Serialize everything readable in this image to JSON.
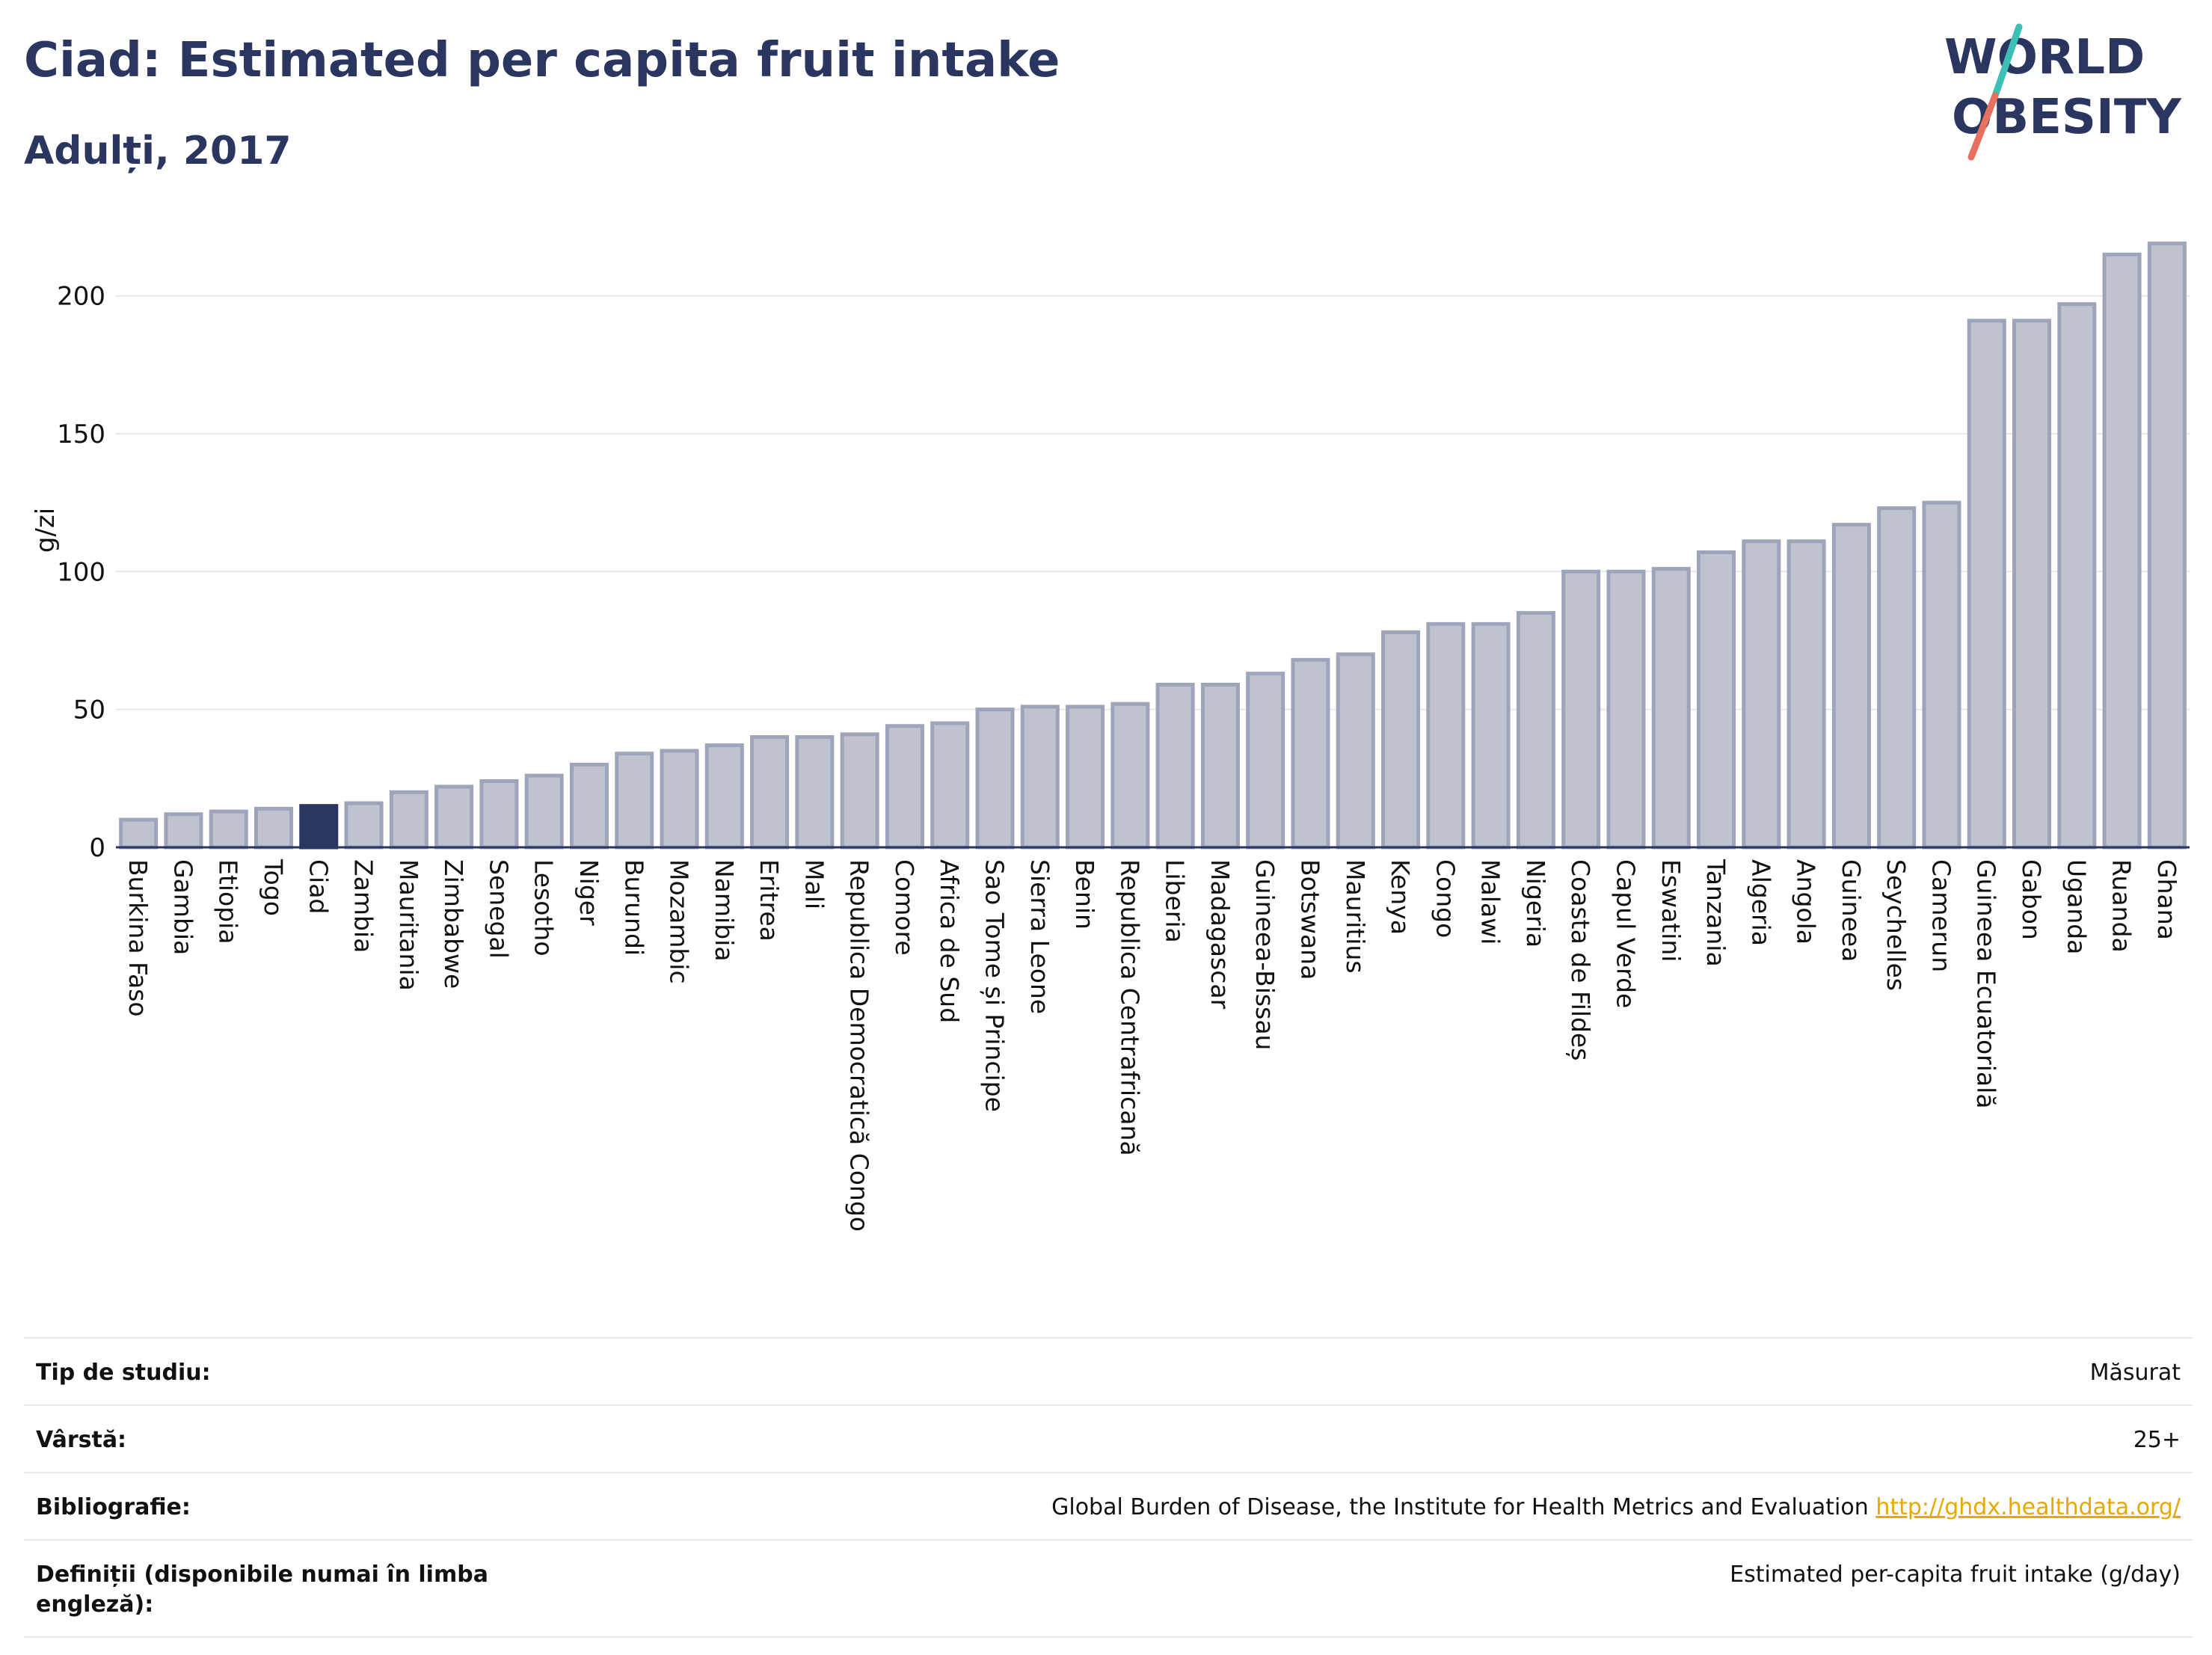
{
  "header": {
    "title": "Ciad: Estimated per capita fruit intake",
    "subtitle": "Adulți, 2017"
  },
  "logo": {
    "line1": "WORLD",
    "line2": "OBESITY"
  },
  "colors": {
    "bar": "#bfc3d0",
    "bar_edge": "#9ea4ba",
    "highlight": "#2a3560",
    "grid": "#e6e8ee"
  },
  "chart_data": {
    "type": "bar",
    "ylabel": "g/zi",
    "ylim": [
      0,
      230
    ],
    "yticks": [
      0,
      50,
      100,
      150,
      200
    ],
    "highlight": "Ciad",
    "categories": [
      "Burkina Faso",
      "Gambia",
      "Etiopia",
      "Togo",
      "Ciad",
      "Zambia",
      "Mauritania",
      "Zimbabwe",
      "Senegal",
      "Lesotho",
      "Niger",
      "Burundi",
      "Mozambic",
      "Namibia",
      "Eritrea",
      "Mali",
      "Republica Democratică Congo",
      "Comore",
      "Africa de Sud",
      "Sao Tome și Principe",
      "Sierra Leone",
      "Benin",
      "Republica Centrafricană",
      "Liberia",
      "Madagascar",
      "Guineea-Bissau",
      "Botswana",
      "Mauritius",
      "Kenya",
      "Congo",
      "Malawi",
      "Nigeria",
      "Coasta de Fildeș",
      "Capul Verde",
      "Eswatini",
      "Tanzania",
      "Algeria",
      "Angola",
      "Guineea",
      "Seychelles",
      "Camerun",
      "Guineea Ecuatorială",
      "Gabon",
      "Uganda",
      "Ruanda",
      "Ghana"
    ],
    "values": [
      10,
      12,
      13,
      14,
      15,
      16,
      20,
      22,
      24,
      26,
      30,
      34,
      35,
      37,
      40,
      40,
      41,
      44,
      45,
      50,
      51,
      51,
      52,
      59,
      59,
      63,
      68,
      70,
      78,
      81,
      81,
      85,
      100,
      100,
      101,
      107,
      111,
      111,
      117,
      123,
      125,
      191,
      191,
      197,
      215,
      219
    ]
  },
  "info": [
    {
      "key": "Tip de studiu:",
      "value": "Măsurat"
    },
    {
      "key": "Vârstă:",
      "value": "25+"
    },
    {
      "key": "Bibliografie:",
      "value": "Global Burden of Disease, the Institute for Health Metrics and Evaluation",
      "link": "http://ghdx.healthdata.org/"
    },
    {
      "key": "Definiții (disponibile numai în limba engleză):",
      "value": "Estimated per-capita fruit intake (g/day)"
    }
  ]
}
